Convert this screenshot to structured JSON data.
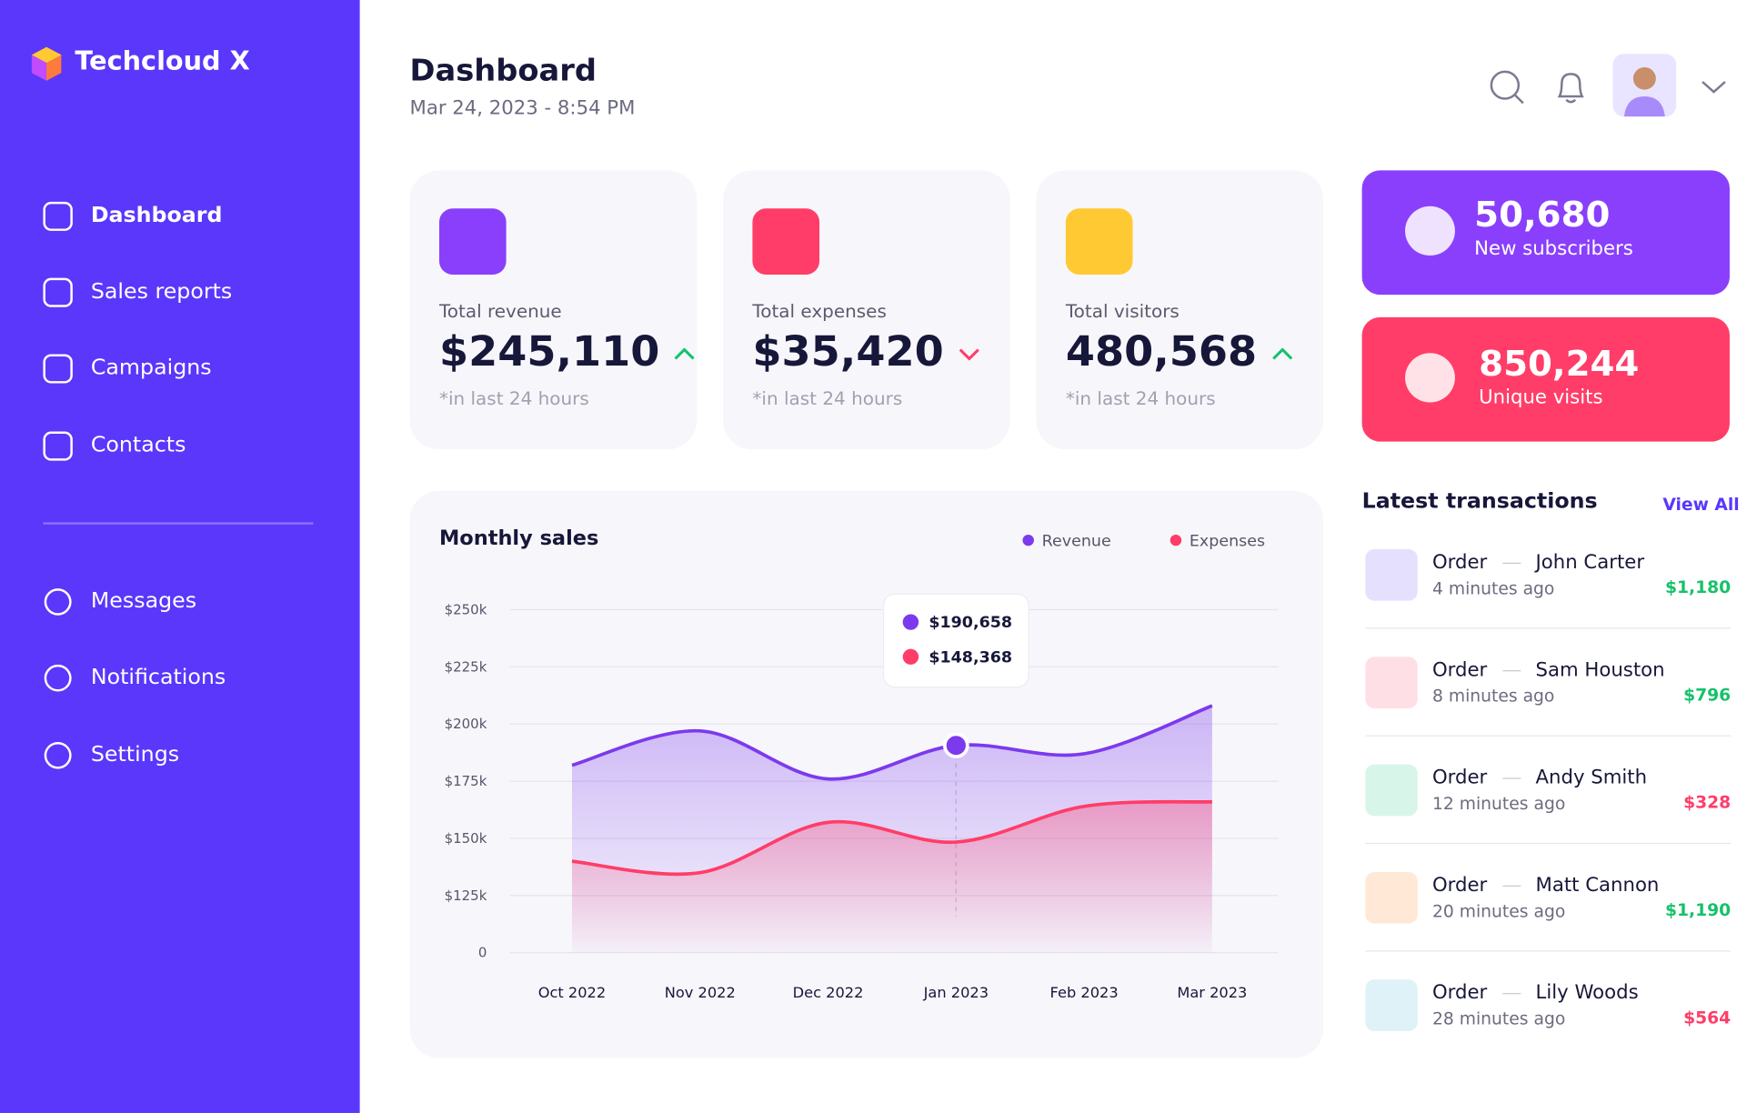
{
  "sidebar": {
    "brand": "Techcloud X",
    "nav": [
      "Dashboard",
      "Sales reports",
      "Campaigns",
      "Contacts"
    ],
    "nav2": [
      "Messages",
      "Notifications",
      "Settings"
    ]
  },
  "header": {
    "title": "Dashboard",
    "datetime": "Mar 24, 2023 - 8:54 PM"
  },
  "stats": [
    {
      "label": "Total revenue",
      "value": "$245,110",
      "note": "*in last 24 hours",
      "trend": "up",
      "color": "#8a3ffc"
    },
    {
      "label": "Total expenses",
      "value": "$35,420",
      "note": "*in last 24 hours",
      "trend": "down",
      "color": "#ff3d68"
    },
    {
      "label": "Total visitors",
      "value": "480,568",
      "note": "*in last 24 hours",
      "trend": "up",
      "color": "#ffc933"
    }
  ],
  "highlights": [
    {
      "value": "50,680",
      "label": "New subscribers",
      "color": "#8a3ffc"
    },
    {
      "value": "850,244",
      "label": "Unique visits",
      "color": "#ff3d68"
    }
  ],
  "transactions": {
    "title": "Latest transactions",
    "link": "View All",
    "items": [
      {
        "type": "Order",
        "name": "John Carter",
        "time": "4 minutes ago",
        "amount": "$1,180",
        "status": "positive"
      },
      {
        "type": "Order",
        "name": "Sam Houston",
        "time": "8 minutes ago",
        "amount": "$796",
        "status": "positive"
      },
      {
        "type": "Order",
        "name": "Andy Smith",
        "time": "12 minutes ago",
        "amount": "$328",
        "status": "negative"
      },
      {
        "type": "Order",
        "name": "Matt Cannon",
        "time": "20 minutes ago",
        "amount": "$1,190",
        "status": "positive"
      },
      {
        "type": "Order",
        "name": "Lily Woods",
        "time": "28 minutes ago",
        "amount": "$564",
        "status": "negative"
      }
    ]
  },
  "chart_data": {
    "type": "area",
    "title": "Monthly sales",
    "categories": [
      "Oct 2022",
      "Nov 2022",
      "Dec 2022",
      "Jan 2023",
      "Feb 2023",
      "Mar 2023"
    ],
    "series": [
      {
        "name": "Revenue",
        "color": "#7c3aed",
        "values": [
          182000,
          197000,
          176000,
          190658,
          187000,
          208000
        ],
        "value_labels": [
          null,
          null,
          null,
          "$190,658",
          null,
          null
        ]
      },
      {
        "name": "Expenses",
        "color": "#ff3d68",
        "values": [
          140000,
          135000,
          157000,
          148368,
          164000,
          166000
        ],
        "value_labels": [
          null,
          null,
          null,
          "$148,368",
          null,
          null
        ]
      }
    ],
    "ylim": [
      0,
      250000
    ],
    "yticks": [
      {
        "value": 0,
        "label": "0"
      },
      {
        "value": 125000,
        "label": "$125k"
      },
      {
        "value": 150000,
        "label": "$150k"
      },
      {
        "value": 175000,
        "label": "$175k"
      },
      {
        "value": 200000,
        "label": "$200k"
      },
      {
        "value": 225000,
        "label": "$225k"
      },
      {
        "value": 250000,
        "label": "$250k"
      }
    ],
    "grid": true
  }
}
